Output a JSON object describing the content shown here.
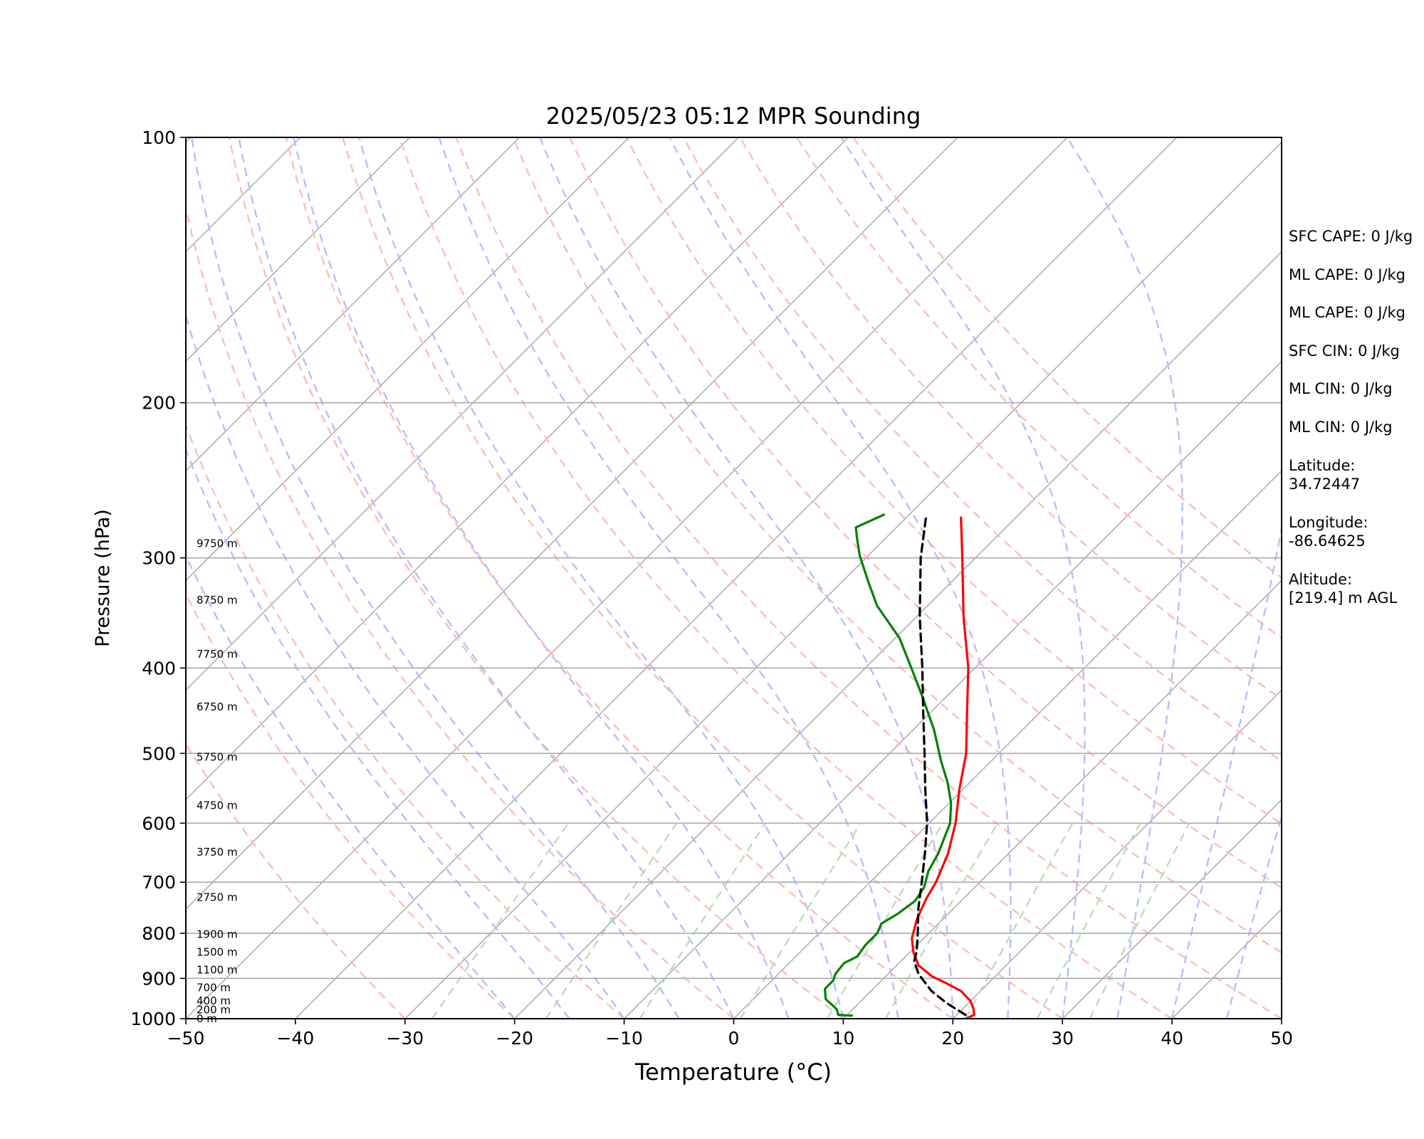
{
  "chart_data": {
    "type": "line",
    "title": "2025/05/23 05:12 MPR Sounding",
    "xlabel": "Temperature (°C)",
    "ylabel": "Pressure (hPa)",
    "xlim": [
      -50,
      50
    ],
    "ylim": [
      1000,
      100
    ],
    "y_scale": "log",
    "x_ticks": [
      -50,
      -40,
      -30,
      -20,
      -10,
      0,
      10,
      20,
      30,
      40,
      50
    ],
    "x_tick_labels": [
      "−50",
      "−40",
      "−30",
      "−20",
      "−10",
      "0",
      "10",
      "20",
      "30",
      "40",
      "50"
    ],
    "y_ticks": [
      1000,
      900,
      800,
      700,
      600,
      500,
      400,
      300,
      200,
      100
    ],
    "y_tick_labels": [
      "1000",
      "900",
      "800",
      "700",
      "600",
      "500",
      "400",
      "300",
      "200",
      "100"
    ],
    "grid": true,
    "series": [
      {
        "color": "#ff0000",
        "points": [
          [
            1000,
            21.2
          ],
          [
            990,
            21.6
          ],
          [
            975,
            21.0
          ],
          [
            955,
            20.0
          ],
          [
            930,
            18.2
          ],
          [
            910,
            16.0
          ],
          [
            895,
            14.2
          ],
          [
            870,
            12.0
          ],
          [
            840,
            10.3
          ],
          [
            810,
            8.9
          ],
          [
            770,
            7.6
          ],
          [
            730,
            6.6
          ],
          [
            700,
            6.0
          ],
          [
            650,
            4.5
          ],
          [
            600,
            2.4
          ],
          [
            550,
            -0.3
          ],
          [
            500,
            -3.0
          ],
          [
            450,
            -6.6
          ],
          [
            400,
            -10.6
          ],
          [
            350,
            -15.7
          ],
          [
            300,
            -21.2
          ],
          [
            270,
            -25.0
          ]
        ]
      },
      {
        "color": "#008000",
        "points": [
          [
            992,
            10.5
          ],
          [
            990,
            9.2
          ],
          [
            975,
            8.5
          ],
          [
            950,
            6.6
          ],
          [
            925,
            5.6
          ],
          [
            905,
            5.6
          ],
          [
            890,
            5.2
          ],
          [
            865,
            5.0
          ],
          [
            850,
            5.6
          ],
          [
            825,
            5.3
          ],
          [
            800,
            5.3
          ],
          [
            780,
            4.8
          ],
          [
            760,
            5.4
          ],
          [
            735,
            5.8
          ],
          [
            710,
            5.4
          ],
          [
            680,
            4.3
          ],
          [
            650,
            3.6
          ],
          [
            600,
            1.9
          ],
          [
            570,
            0.2
          ],
          [
            540,
            -2.0
          ],
          [
            510,
            -4.6
          ],
          [
            470,
            -8.1
          ],
          [
            430,
            -12.3
          ],
          [
            400,
            -15.8
          ],
          [
            370,
            -19.6
          ],
          [
            340,
            -24.6
          ],
          [
            320,
            -27.5
          ],
          [
            298,
            -30.8
          ],
          [
            285,
            -32.6
          ],
          [
            277,
            -33.7
          ],
          [
            268,
            -32.3
          ]
        ]
      },
      {
        "color": "#000000",
        "style": "dashed",
        "points": [
          [
            990,
            20.8
          ],
          [
            960,
            18.0
          ],
          [
            930,
            15.5
          ],
          [
            890,
            12.8
          ],
          [
            860,
            11.2
          ],
          [
            840,
            10.6
          ],
          [
            800,
            9.0
          ],
          [
            750,
            6.8
          ],
          [
            700,
            4.7
          ],
          [
            650,
            2.4
          ],
          [
            600,
            -0.2
          ],
          [
            550,
            -3.4
          ],
          [
            500,
            -6.8
          ],
          [
            450,
            -10.6
          ],
          [
            400,
            -14.8
          ],
          [
            350,
            -19.7
          ],
          [
            300,
            -25.0
          ],
          [
            270,
            -28.2
          ]
        ]
      }
    ],
    "height_labels": [
      {
        "text": "0 m",
        "p": 1000
      },
      {
        "text": "200 m",
        "p": 977
      },
      {
        "text": "400 m",
        "p": 955
      },
      {
        "text": "700 m",
        "p": 922
      },
      {
        "text": "1100 m",
        "p": 880
      },
      {
        "text": "1500 m",
        "p": 840
      },
      {
        "text": "1900 m",
        "p": 802
      },
      {
        "text": "2750 m",
        "p": 728
      },
      {
        "text": "3750 m",
        "p": 647
      },
      {
        "text": "4750 m",
        "p": 573
      },
      {
        "text": "5750 m",
        "p": 505
      },
      {
        "text": "6750 m",
        "p": 443
      },
      {
        "text": "7750 m",
        "p": 386
      },
      {
        "text": "8750 m",
        "p": 335
      },
      {
        "text": "9750 m",
        "p": 289
      }
    ],
    "background_lines": {
      "isotherms": {
        "color": "#aaaaaa"
      },
      "dry_adiabats": {
        "color": "#ffbbbb",
        "style": "dashed"
      },
      "moist_adiabats": {
        "color": "#bbbbff",
        "style": "dashed"
      },
      "mixing_ratio_lines": {
        "color": "#bbddbb",
        "style": "dashed"
      }
    }
  },
  "stats": [
    "SFC CAPE: 0 J/kg",
    "ML CAPE: 0 J/kg",
    "ML CAPE: 0 J/kg",
    "SFC CIN: 0 J/kg",
    "ML CIN: 0 J/kg",
    "ML CIN: 0 J/kg",
    "Latitude:\n34.72447",
    "Longitude:\n-86.64625",
    "Altitude:\n[219.4] m AGL"
  ]
}
